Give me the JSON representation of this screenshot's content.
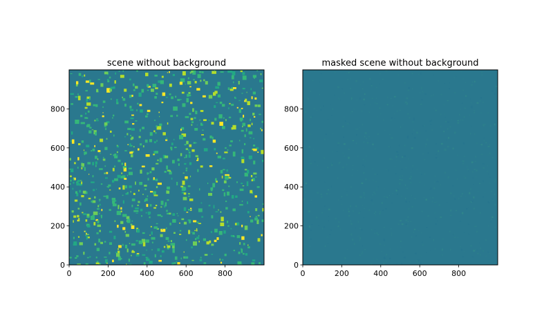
{
  "chart_data": [
    {
      "type": "heatmap",
      "title": "scene without background",
      "xlabel": "",
      "ylabel": "",
      "xlim": [
        0,
        1000
      ],
      "ylim": [
        0,
        1000
      ],
      "xticks": [
        0,
        200,
        400,
        600,
        800
      ],
      "yticks": [
        0,
        200,
        400,
        600,
        800
      ],
      "colormap": "viridis",
      "background_color": "#2a788e",
      "speckle_colors": [
        "#35b779",
        "#22a884",
        "#6ece58",
        "#b5de2b",
        "#fde725"
      ],
      "speckle_count": 900,
      "speckle_size_px": [
        2,
        6
      ]
    },
    {
      "type": "heatmap",
      "title": "masked scene without background",
      "xlabel": "",
      "ylabel": "",
      "xlim": [
        0,
        1000
      ],
      "ylim": [
        0,
        1000
      ],
      "xticks": [
        0,
        200,
        400,
        600,
        800
      ],
      "yticks": [
        0,
        200,
        400,
        600,
        800
      ],
      "colormap": "viridis",
      "background_color": "#2a788e",
      "speckle_colors": [
        "#2c7e8c",
        "#27758e",
        "#2f848b"
      ],
      "speckle_count": 700,
      "speckle_size_px": [
        1,
        3
      ]
    }
  ]
}
